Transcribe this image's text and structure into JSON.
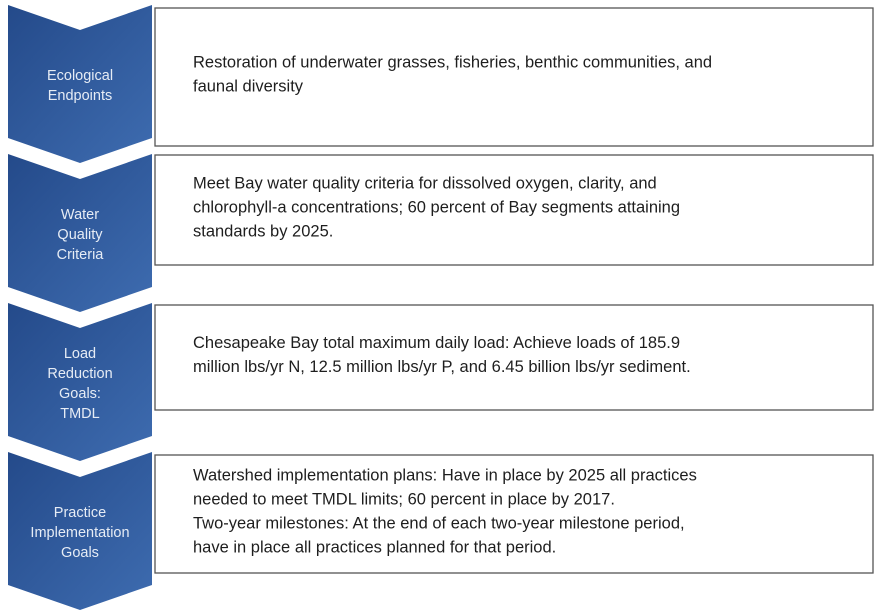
{
  "steps": [
    {
      "label": [
        "Ecological",
        "Endpoints"
      ],
      "text": [
        "Restoration of underwater grasses, fisheries, benthic communities, and",
        "faunal diversity"
      ]
    },
    {
      "label": [
        "Water",
        "Quality",
        "Criteria"
      ],
      "text": [
        "Meet Bay water quality criteria for dissolved oxygen, clarity, and",
        "chlorophyll-a concentrations; 60 percent of Bay segments attaining",
        "standards by 2025."
      ]
    },
    {
      "label": [
        "Load",
        "Reduction",
        "Goals:",
        "TMDL"
      ],
      "text": [
        "Chesapeake Bay total maximum daily load: Achieve loads of 185.9",
        "million lbs/yr N, 12.5 million lbs/yr P, and 6.45 billion lbs/yr sediment."
      ]
    },
    {
      "label": [
        "Practice",
        "Implementation",
        "Goals"
      ],
      "text": [
        "Watershed implementation plans: Have in place by 2025 all practices",
        "needed to meet TMDL limits; 60 percent in place by 2017.",
        "Two-year milestones: At the end of each two-year milestone period,",
        "have in place all practices planned for that period."
      ]
    }
  ]
}
